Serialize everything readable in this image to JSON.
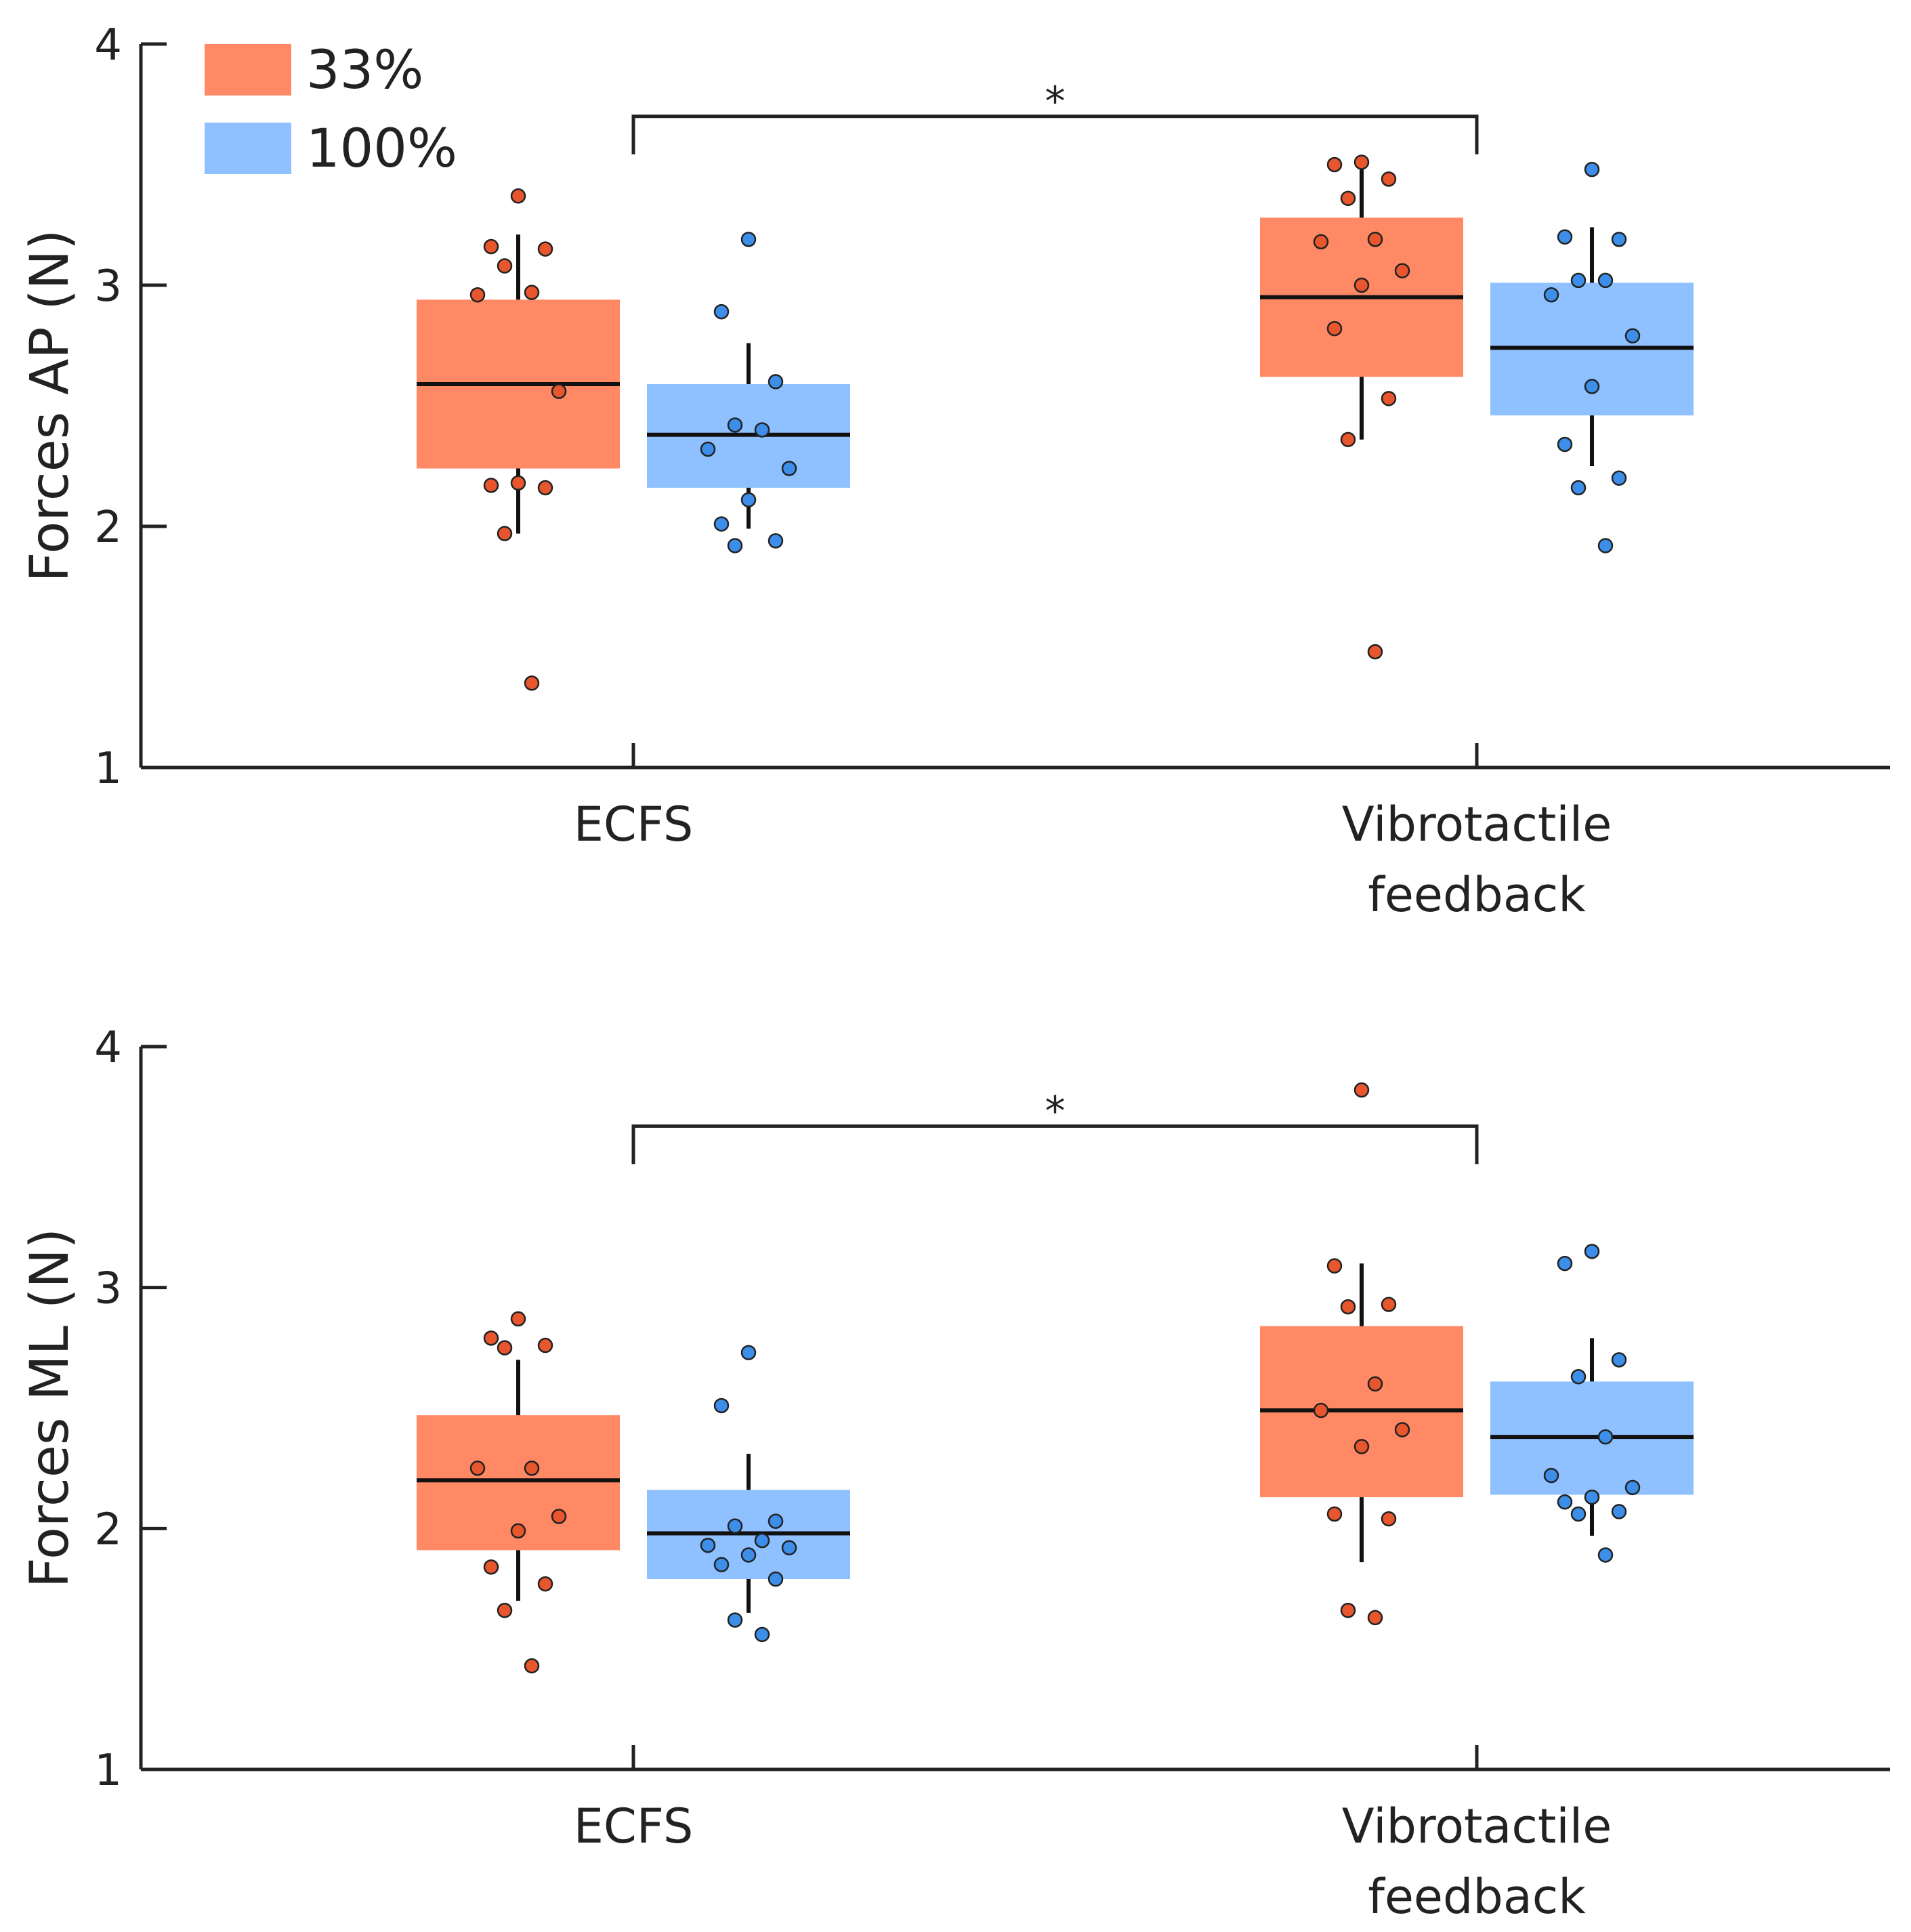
{
  "chart_data": [
    {
      "type": "box",
      "ylabel": "Forces AP (N)",
      "xlabel": "",
      "ylim": [
        1,
        4
      ],
      "yticks": [
        1,
        2,
        3,
        4
      ],
      "categories": [
        "ECFS",
        "Vibrotactile\nfeedback"
      ],
      "legend": {
        "position": "top-left"
      },
      "series": [
        {
          "name": "33%",
          "color": "#ff8964",
          "point_color": "#e8562e",
          "boxes": [
            {
              "q1": 2.24,
              "median": 2.59,
              "q3": 2.94,
              "whisker_low": 1.97,
              "whisker_high": 3.21,
              "points": [
                3.37,
                3.16,
                3.15,
                3.08,
                2.97,
                2.96,
                2.56,
                2.18,
                2.17,
                2.16,
                1.97,
                1.35
              ]
            },
            {
              "q1": 2.62,
              "median": 2.95,
              "q3": 3.28,
              "whisker_low": 2.36,
              "whisker_high": 3.54,
              "points": [
                3.51,
                3.5,
                3.44,
                3.36,
                3.19,
                3.18,
                3.06,
                3.0,
                2.82,
                2.53,
                2.36,
                1.48
              ]
            }
          ]
        },
        {
          "name": "100%",
          "color": "#8fc0ff",
          "point_color": "#3d8ee8",
          "boxes": [
            {
              "q1": 2.16,
              "median": 2.38,
              "q3": 2.59,
              "whisker_low": 1.99,
              "whisker_high": 2.76,
              "points": [
                3.19,
                2.89,
                2.6,
                2.42,
                2.4,
                2.32,
                2.24,
                2.11,
                2.01,
                1.94,
                1.92
              ]
            },
            {
              "q1": 2.46,
              "median": 2.74,
              "q3": 3.01,
              "whisker_low": 2.25,
              "whisker_high": 3.24,
              "points": [
                3.48,
                3.2,
                3.19,
                3.02,
                3.02,
                2.96,
                2.79,
                2.58,
                2.34,
                2.2,
                2.16,
                1.92
              ]
            }
          ]
        }
      ],
      "significance": {
        "from": "ECFS",
        "to": "Vibrotactile\nfeedback",
        "y": 3.7,
        "label": "*"
      }
    },
    {
      "type": "box",
      "ylabel": "Forces ML (N)",
      "xlabel": "",
      "ylim": [
        1,
        4
      ],
      "yticks": [
        1,
        2,
        3,
        4
      ],
      "categories": [
        "ECFS",
        "Vibrotactile\nfeedback"
      ],
      "series": [
        {
          "name": "33%",
          "color": "#ff8964",
          "point_color": "#e8562e",
          "boxes": [
            {
              "q1": 1.91,
              "median": 2.2,
              "q3": 2.47,
              "whisker_low": 1.7,
              "whisker_high": 2.7,
              "points": [
                2.87,
                2.79,
                2.76,
                2.75,
                2.25,
                2.25,
                2.05,
                1.99,
                1.84,
                1.77,
                1.66,
                1.43
              ]
            },
            {
              "q1": 2.13,
              "median": 2.49,
              "q3": 2.84,
              "whisker_low": 1.86,
              "whisker_high": 3.1,
              "points": [
                3.82,
                3.09,
                2.93,
                2.92,
                2.6,
                2.49,
                2.41,
                2.34,
                2.06,
                2.04,
                1.66,
                1.63
              ]
            }
          ]
        },
        {
          "name": "100%",
          "color": "#8fc0ff",
          "point_color": "#3d8ee8",
          "boxes": [
            {
              "q1": 1.79,
              "median": 1.98,
              "q3": 2.16,
              "whisker_low": 1.65,
              "whisker_high": 2.31,
              "points": [
                2.73,
                2.51,
                2.03,
                2.01,
                1.95,
                1.93,
                1.92,
                1.89,
                1.85,
                1.79,
                1.62,
                1.56
              ]
            },
            {
              "q1": 2.14,
              "median": 2.38,
              "q3": 2.61,
              "whisker_low": 1.97,
              "whisker_high": 2.79,
              "points": [
                3.15,
                3.1,
                2.7,
                2.63,
                2.38,
                2.22,
                2.17,
                2.13,
                2.11,
                2.07,
                2.06,
                1.89
              ]
            }
          ]
        }
      ],
      "significance": {
        "from": "ECFS",
        "to": "Vibrotactile\nfeedback",
        "y": 3.67,
        "label": "*"
      }
    }
  ]
}
